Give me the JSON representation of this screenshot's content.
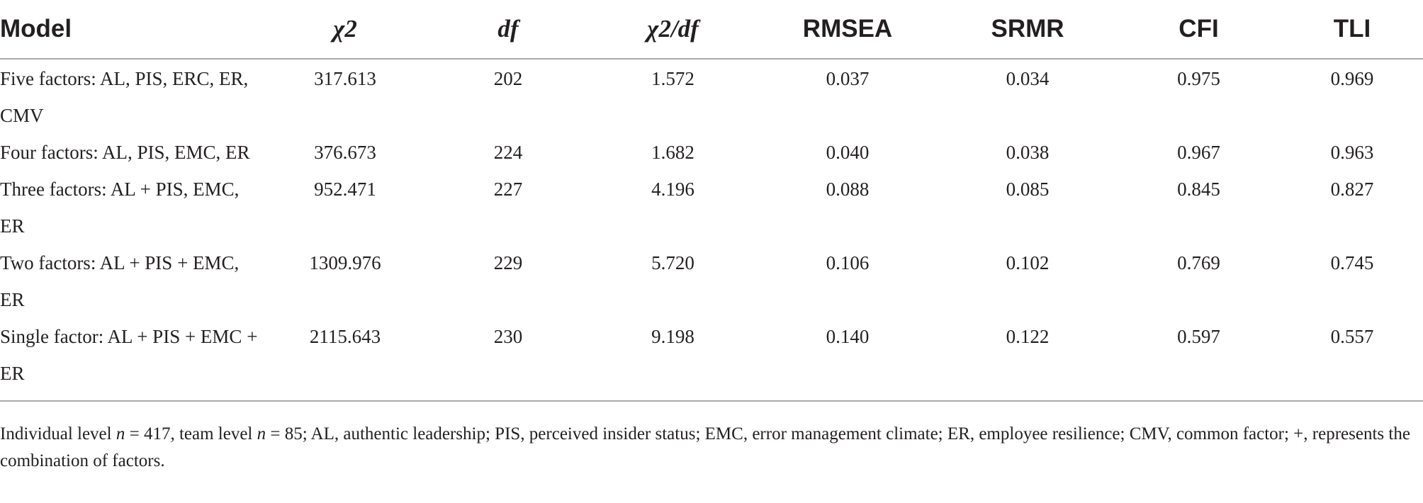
{
  "table": {
    "headers": [
      "Model",
      "χ2",
      "df",
      "χ2/df",
      "RMSEA",
      "SRMR",
      "CFI",
      "TLI"
    ],
    "rows": [
      {
        "model": "Five factors: AL, PIS, ERC, ER, CMV",
        "chi2": "317.613",
        "df": "202",
        "chi2_df": "1.572",
        "rmsea": "0.037",
        "srmr": "0.034",
        "cfi": "0.975",
        "tli": "0.969"
      },
      {
        "model": "Four factors: AL, PIS, EMC, ER",
        "chi2": "376.673",
        "df": "224",
        "chi2_df": "1.682",
        "rmsea": "0.040",
        "srmr": "0.038",
        "cfi": "0.967",
        "tli": "0.963"
      },
      {
        "model": "Three factors: AL + PIS, EMC, ER",
        "chi2": "952.471",
        "df": "227",
        "chi2_df": "4.196",
        "rmsea": "0.088",
        "srmr": "0.085",
        "cfi": "0.845",
        "tli": "0.827"
      },
      {
        "model": "Two factors: AL + PIS + EMC, ER",
        "chi2": "1309.976",
        "df": "229",
        "chi2_df": "5.720",
        "rmsea": "0.106",
        "srmr": "0.102",
        "cfi": "0.769",
        "tli": "0.745"
      },
      {
        "model": "Single factor: AL + PIS + EMC + ER",
        "chi2": "2115.643",
        "df": "230",
        "chi2_df": "9.198",
        "rmsea": "0.140",
        "srmr": "0.122",
        "cfi": "0.597",
        "tli": "0.557"
      }
    ]
  },
  "footnote": {
    "prefix": "Individual level ",
    "n1_var": "n",
    "n1_val": " = 417, team level ",
    "n2_var": "n",
    "rest": " = 85; AL, authentic leadership; PIS, perceived insider status; EMC, error management climate; ER, employee resilience; CMV, common factor; +, represents the combination of factors."
  }
}
